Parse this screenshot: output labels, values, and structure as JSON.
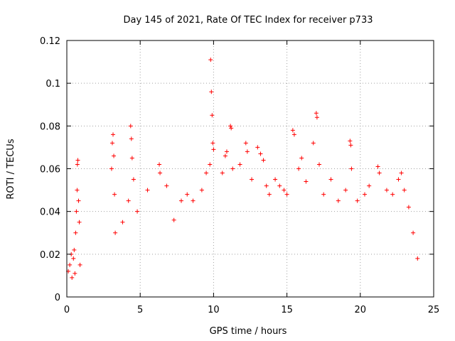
{
  "chart_data": {
    "type": "scatter",
    "title": "Day 145 of 2021, Rate Of TEC Index for receiver p733",
    "xlabel": "GPS time / hours",
    "ylabel": "ROTI / TECUs",
    "xlim": [
      0,
      25
    ],
    "ylim": [
      0,
      0.12
    ],
    "xticks": [
      0,
      5,
      10,
      15,
      20,
      25
    ],
    "xtick_labels": [
      "0",
      "5",
      "10",
      "15",
      "20",
      "25"
    ],
    "yticks": [
      0,
      0.02,
      0.04,
      0.06,
      0.08,
      0.1,
      0.12
    ],
    "ytick_labels": [
      "0",
      "0.02",
      "0.04",
      "0.06",
      "0.08",
      "0.1",
      "0.12"
    ],
    "grid": true,
    "marker": "+",
    "color": "#ff0000",
    "data_gap": [
      0.95,
      2.95
    ],
    "series": [
      {
        "points": [
          [
            0.1,
            0.012
          ],
          [
            0.2,
            0.015
          ],
          [
            0.3,
            0.02
          ],
          [
            0.35,
            0.009
          ],
          [
            0.45,
            0.018
          ],
          [
            0.5,
            0.022
          ],
          [
            0.55,
            0.011
          ],
          [
            0.6,
            0.03
          ],
          [
            0.65,
            0.04
          ],
          [
            0.7,
            0.05
          ],
          [
            0.72,
            0.062
          ],
          [
            0.75,
            0.064
          ],
          [
            0.8,
            0.045
          ],
          [
            0.85,
            0.035
          ],
          [
            0.9,
            0.015
          ],
          [
            3.05,
            0.06
          ],
          [
            3.1,
            0.072
          ],
          [
            3.15,
            0.076
          ],
          [
            3.2,
            0.066
          ],
          [
            3.25,
            0.048
          ],
          [
            3.3,
            0.03
          ],
          [
            3.8,
            0.035
          ],
          [
            4.2,
            0.045
          ],
          [
            4.35,
            0.08
          ],
          [
            4.4,
            0.074
          ],
          [
            4.45,
            0.065
          ],
          [
            4.55,
            0.055
          ],
          [
            4.8,
            0.04
          ],
          [
            5.5,
            0.05
          ],
          [
            6.3,
            0.062
          ],
          [
            6.35,
            0.058
          ],
          [
            6.8,
            0.052
          ],
          [
            7.3,
            0.036
          ],
          [
            7.8,
            0.045
          ],
          [
            8.2,
            0.048
          ],
          [
            8.6,
            0.045
          ],
          [
            9.2,
            0.05
          ],
          [
            9.5,
            0.058
          ],
          [
            9.75,
            0.062
          ],
          [
            9.8,
            0.111
          ],
          [
            9.85,
            0.096
          ],
          [
            9.9,
            0.085
          ],
          [
            9.95,
            0.072
          ],
          [
            10.0,
            0.069
          ],
          [
            10.6,
            0.058
          ],
          [
            10.8,
            0.066
          ],
          [
            10.9,
            0.068
          ],
          [
            11.15,
            0.08
          ],
          [
            11.2,
            0.079
          ],
          [
            11.3,
            0.06
          ],
          [
            11.8,
            0.062
          ],
          [
            12.2,
            0.072
          ],
          [
            12.3,
            0.068
          ],
          [
            12.6,
            0.055
          ],
          [
            13.0,
            0.07
          ],
          [
            13.2,
            0.067
          ],
          [
            13.4,
            0.064
          ],
          [
            13.6,
            0.052
          ],
          [
            13.8,
            0.048
          ],
          [
            14.2,
            0.055
          ],
          [
            14.5,
            0.052
          ],
          [
            14.8,
            0.05
          ],
          [
            15.0,
            0.048
          ],
          [
            15.4,
            0.078
          ],
          [
            15.5,
            0.076
          ],
          [
            15.8,
            0.06
          ],
          [
            16.0,
            0.065
          ],
          [
            16.3,
            0.054
          ],
          [
            16.8,
            0.072
          ],
          [
            17.0,
            0.086
          ],
          [
            17.05,
            0.084
          ],
          [
            17.2,
            0.062
          ],
          [
            17.5,
            0.048
          ],
          [
            18.0,
            0.055
          ],
          [
            18.5,
            0.045
          ],
          [
            19.0,
            0.05
          ],
          [
            19.3,
            0.073
          ],
          [
            19.35,
            0.071
          ],
          [
            19.4,
            0.06
          ],
          [
            19.8,
            0.045
          ],
          [
            20.3,
            0.048
          ],
          [
            20.6,
            0.052
          ],
          [
            21.2,
            0.061
          ],
          [
            21.3,
            0.058
          ],
          [
            21.8,
            0.05
          ],
          [
            22.2,
            0.048
          ],
          [
            22.6,
            0.055
          ],
          [
            22.8,
            0.058
          ],
          [
            23.0,
            0.05
          ],
          [
            23.3,
            0.042
          ],
          [
            23.6,
            0.03
          ],
          [
            23.9,
            0.018
          ]
        ]
      }
    ]
  }
}
